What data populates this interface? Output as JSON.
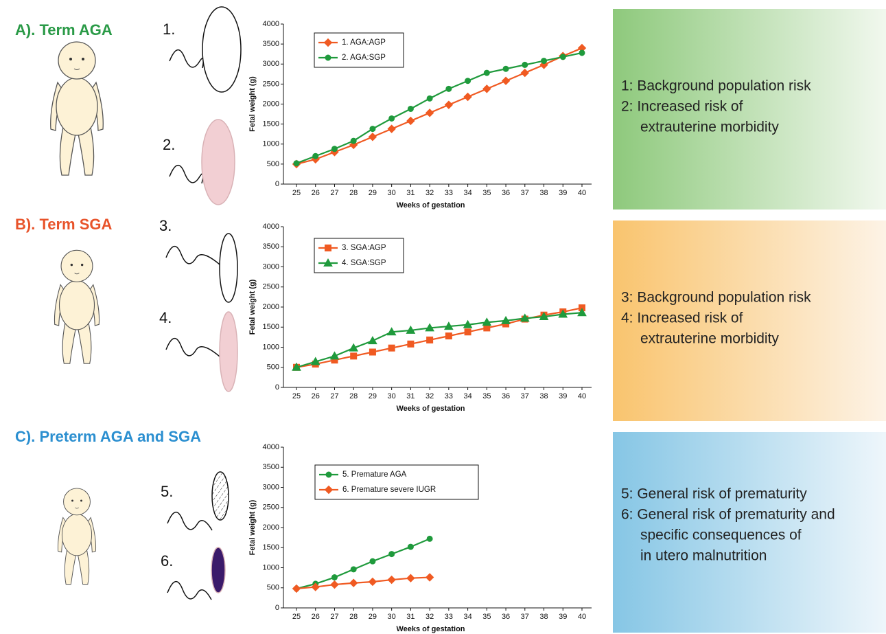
{
  "panels": [
    {
      "label": "A). Term AGA",
      "placenta_labels": [
        "1.",
        "2."
      ],
      "notes": [
        "1: Background population risk",
        "2: Increased risk of",
        "extrauterine morbidity"
      ]
    },
    {
      "label": "B). Term SGA",
      "placenta_labels": [
        "3.",
        "4."
      ],
      "notes": [
        "3: Background population risk",
        "4: Increased risk of",
        "extrauterine morbidity"
      ]
    },
    {
      "label": "C). Preterm AGA and SGA",
      "placenta_labels": [
        "5.",
        "6."
      ],
      "notes": [
        "5: General risk of prematurity",
        "6: General risk of prematurity and",
        "specific consequences of",
        "in utero malnutrition"
      ]
    }
  ],
  "chart_data": [
    {
      "type": "line",
      "xlabel": "Weeks of gestation",
      "ylabel": "Fetal weight (g)",
      "categories": [
        "25",
        "26",
        "27",
        "28",
        "29",
        "30",
        "31",
        "32",
        "33",
        "34",
        "35",
        "36",
        "37",
        "38",
        "39",
        "40"
      ],
      "ylim": [
        0,
        4000
      ],
      "yticks": [
        0,
        500,
        1000,
        1500,
        2000,
        2500,
        3000,
        3500,
        4000
      ],
      "series": [
        {
          "name": "1. AGA:AGP",
          "color": "#f05a22",
          "marker": "diamond",
          "values": [
            500,
            620,
            800,
            980,
            1180,
            1380,
            1580,
            1780,
            1980,
            2180,
            2380,
            2580,
            2780,
            2980,
            3200,
            3400
          ]
        },
        {
          "name": "2. AGA:SGP",
          "color": "#1f9a3c",
          "marker": "circle",
          "values": [
            520,
            700,
            880,
            1080,
            1380,
            1640,
            1880,
            2140,
            2380,
            2580,
            2780,
            2880,
            2980,
            3080,
            3180,
            3280
          ]
        }
      ]
    },
    {
      "type": "line",
      "xlabel": "Weeks of gestation",
      "ylabel": "Fetal weight (g)",
      "categories": [
        "25",
        "26",
        "27",
        "28",
        "29",
        "30",
        "31",
        "32",
        "33",
        "34",
        "35",
        "36",
        "37",
        "38",
        "39",
        "40"
      ],
      "ylim": [
        0,
        4000
      ],
      "yticks": [
        0,
        500,
        1000,
        1500,
        2000,
        2500,
        3000,
        3500,
        4000
      ],
      "series": [
        {
          "name": "3. SGA:AGP",
          "color": "#f05a22",
          "marker": "square",
          "values": [
            500,
            580,
            680,
            780,
            880,
            980,
            1080,
            1180,
            1280,
            1380,
            1480,
            1580,
            1700,
            1800,
            1880,
            1980
          ]
        },
        {
          "name": "4. SGA:SGP",
          "color": "#1f9a3c",
          "marker": "triangle",
          "values": [
            500,
            640,
            780,
            980,
            1160,
            1380,
            1420,
            1480,
            1520,
            1560,
            1620,
            1660,
            1720,
            1760,
            1820,
            1860
          ]
        }
      ]
    },
    {
      "type": "line",
      "xlabel": "Weeks of gestation",
      "ylabel": "Fetal weight (g)",
      "categories": [
        "25",
        "26",
        "27",
        "28",
        "29",
        "30",
        "31",
        "32",
        "33",
        "34",
        "35",
        "36",
        "37",
        "38",
        "39",
        "40"
      ],
      "ylim": [
        0,
        4000
      ],
      "yticks": [
        0,
        500,
        1000,
        1500,
        2000,
        2500,
        3000,
        3500,
        4000
      ],
      "series": [
        {
          "name": "5. Premature AGA",
          "color": "#1f9a3c",
          "marker": "circle",
          "values": [
            480,
            600,
            760,
            960,
            1160,
            1340,
            1520,
            1720,
            null,
            null,
            null,
            null,
            null,
            null,
            null,
            null
          ]
        },
        {
          "name": "6. Premature severe IUGR",
          "color": "#f05a22",
          "marker": "diamond",
          "values": [
            480,
            520,
            580,
            620,
            650,
            700,
            740,
            760,
            null,
            null,
            null,
            null,
            null,
            null,
            null,
            null
          ]
        }
      ]
    }
  ]
}
